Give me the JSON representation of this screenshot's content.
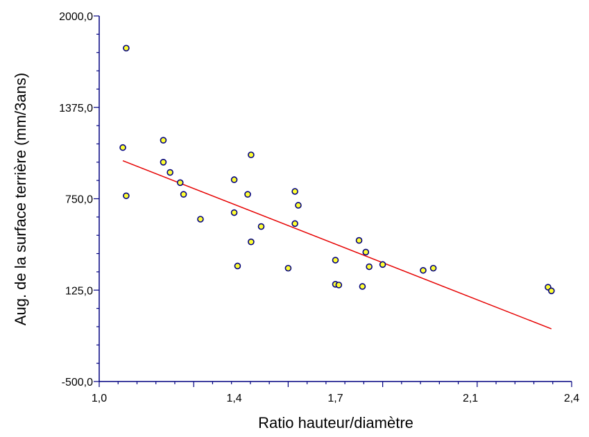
{
  "chart_data": {
    "type": "scatter",
    "title": "",
    "xlabel": "Ratio hauteur/diamètre",
    "ylabel": "Aug. de la surface terrière (mm/3ans)",
    "xlim": [
      1.0,
      2.4
    ],
    "ylim": [
      -500.0,
      2000.0
    ],
    "x_ticks": [
      1.0,
      1.4,
      1.7,
      2.1,
      2.4
    ],
    "x_tick_labels": [
      "1,0",
      "1,4",
      "1,7",
      "2,1",
      "2,4"
    ],
    "y_ticks": [
      -500.0,
      125.0,
      750.0,
      1375.0,
      2000.0
    ],
    "y_tick_labels": [
      "-500,0",
      "125,0",
      "750,0",
      "1375,0",
      "2000,0"
    ],
    "grid": false,
    "legend": "none",
    "colors": {
      "point_fill": "#ffff33",
      "point_edge": "#000080",
      "fit_line": "#e60000",
      "axis": "#000080"
    },
    "series": [
      {
        "name": "",
        "points": [
          {
            "x": 1.08,
            "y": 1780
          },
          {
            "x": 1.07,
            "y": 1100
          },
          {
            "x": 1.08,
            "y": 770
          },
          {
            "x": 1.19,
            "y": 1150
          },
          {
            "x": 1.19,
            "y": 1000
          },
          {
            "x": 1.21,
            "y": 930
          },
          {
            "x": 1.24,
            "y": 860
          },
          {
            "x": 1.25,
            "y": 780
          },
          {
            "x": 1.3,
            "y": 610
          },
          {
            "x": 1.4,
            "y": 880
          },
          {
            "x": 1.4,
            "y": 655
          },
          {
            "x": 1.41,
            "y": 290
          },
          {
            "x": 1.44,
            "y": 780
          },
          {
            "x": 1.45,
            "y": 1050
          },
          {
            "x": 1.45,
            "y": 455
          },
          {
            "x": 1.48,
            "y": 560
          },
          {
            "x": 1.56,
            "y": 275
          },
          {
            "x": 1.58,
            "y": 580
          },
          {
            "x": 1.58,
            "y": 800
          },
          {
            "x": 1.59,
            "y": 705
          },
          {
            "x": 1.7,
            "y": 330
          },
          {
            "x": 1.7,
            "y": 165
          },
          {
            "x": 1.71,
            "y": 160
          },
          {
            "x": 1.77,
            "y": 465
          },
          {
            "x": 1.78,
            "y": 150
          },
          {
            "x": 1.79,
            "y": 385
          },
          {
            "x": 1.8,
            "y": 285
          },
          {
            "x": 1.84,
            "y": 300
          },
          {
            "x": 1.96,
            "y": 260
          },
          {
            "x": 1.99,
            "y": 275
          },
          {
            "x": 2.33,
            "y": 145
          },
          {
            "x": 2.34,
            "y": 120
          }
        ]
      }
    ],
    "fit_line": {
      "x": [
        1.07,
        2.34
      ],
      "y": [
        1010,
        -140
      ]
    }
  }
}
